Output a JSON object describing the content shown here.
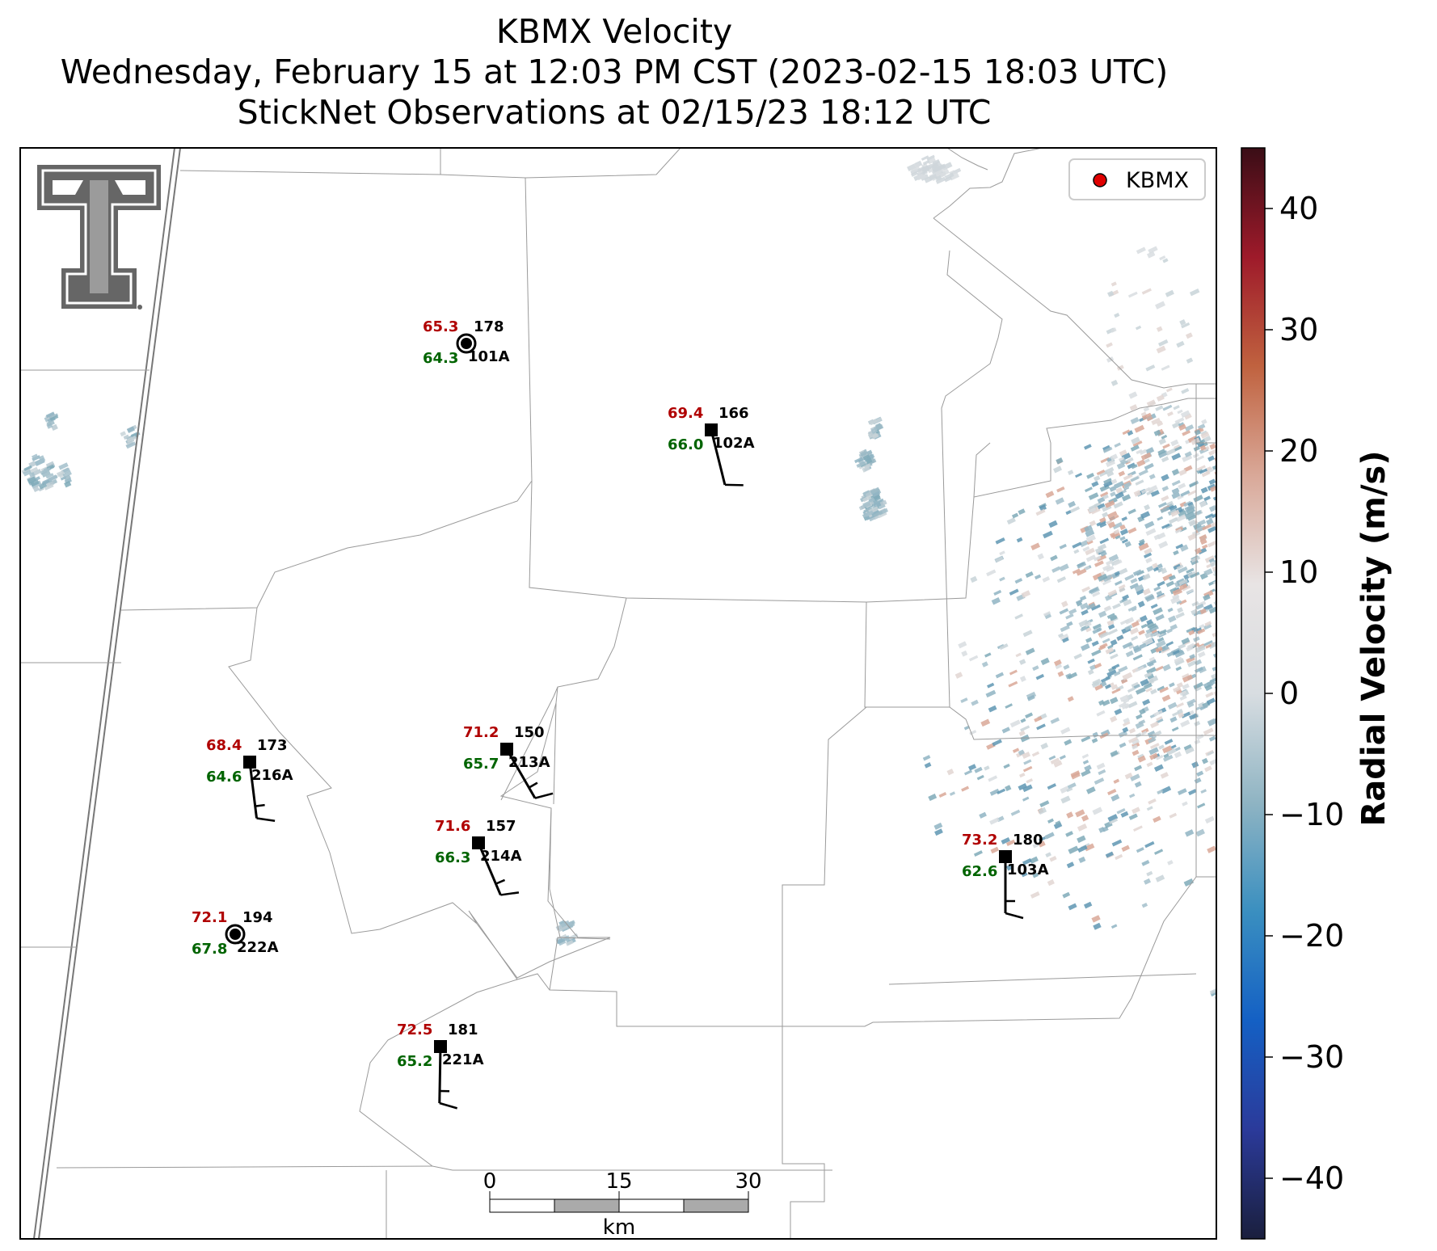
{
  "title": {
    "line1": "KBMX Velocity",
    "line2": "Wednesday, February 15 at 12:03 PM CST (2023-02-15 18:03 UTC)",
    "line3": "StickNet Observations at 02/15/23 18:12 UTC"
  },
  "legend": {
    "label": "KBMX",
    "marker_color": "#e00000"
  },
  "colorbar": {
    "label": "Radial Velocity (m/s)",
    "range": [
      -45,
      45
    ],
    "ticks": [
      40,
      30,
      20,
      10,
      0,
      -10,
      -20,
      -30,
      -40
    ],
    "tick_labels": [
      "40",
      "30",
      "20",
      "10",
      "0",
      "−10",
      "−20",
      "−30",
      "−40"
    ],
    "colors": [
      "#1a1f3d",
      "#2b3a9a",
      "#1460c4",
      "#3a8fc0",
      "#8fb4c3",
      "#d8dde1",
      "#e8e4e4",
      "#d9a898",
      "#c0623f",
      "#9e1a2a",
      "#3a0d16"
    ]
  },
  "scalebar": {
    "tick_labels": [
      "0",
      "15",
      "30"
    ],
    "unit": "km"
  },
  "stations": [
    {
      "id": "101A",
      "temp": "65.3",
      "dew": "64.3",
      "dir": "178",
      "lon": 0.0,
      "lat": 0.0,
      "speed_kt": 0
    },
    {
      "id": "102A",
      "temp": "69.4",
      "dew": "66.0",
      "dir": "166",
      "lon": 0.0,
      "lat": 0.0,
      "speed_kt": 10
    },
    {
      "id": "216A",
      "temp": "68.4",
      "dew": "64.6",
      "dir": "173",
      "lon": 0.0,
      "lat": 0.0,
      "speed_kt": 15
    },
    {
      "id": "213A",
      "temp": "71.2",
      "dew": "65.7",
      "dir": "150",
      "lon": 0.0,
      "lat": 0.0,
      "speed_kt": 15
    },
    {
      "id": "214A",
      "temp": "71.6",
      "dew": "66.3",
      "dir": "157",
      "lon": 0.0,
      "lat": 0.0,
      "speed_kt": 15
    },
    {
      "id": "222A",
      "temp": "72.1",
      "dew": "67.8",
      "dir": "194",
      "lon": 0.0,
      "lat": 0.0,
      "speed_kt": 0
    },
    {
      "id": "221A",
      "temp": "72.5",
      "dew": "65.2",
      "dir": "181",
      "lon": 0.0,
      "lat": 0.0,
      "speed_kt": 15
    },
    {
      "id": "103A",
      "temp": "73.2",
      "dew": "62.6",
      "dir": "180",
      "lon": 0.0,
      "lat": 0.0,
      "speed_kt": 15
    }
  ],
  "colors": {
    "temp": "#b00000",
    "dew": "#006400",
    "id": "#000000",
    "county_lines": "#999999",
    "state_line": "#777777"
  }
}
